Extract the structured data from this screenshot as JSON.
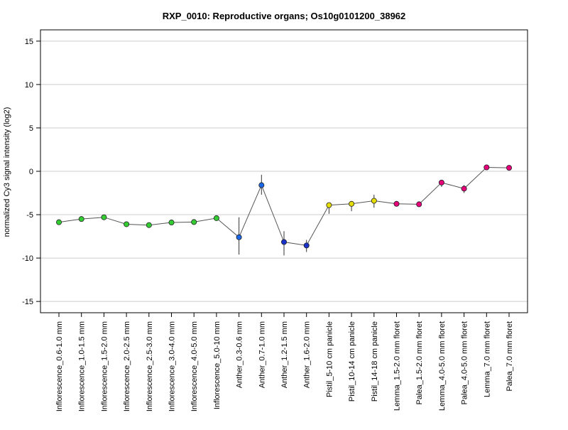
{
  "chart_data": {
    "type": "line",
    "title": "RXP_0010: Reproductive organs; Os10g0101200_38962",
    "xlabel": "",
    "ylabel": "normalized Cy3 signal intensity (log2)",
    "ylim": [
      -16.3,
      16.3
    ],
    "yticks": [
      -15,
      -10,
      -5,
      0,
      5,
      10,
      15
    ],
    "grid": true,
    "categories": [
      "Inflorescence_0.6-1.0 mm",
      "Inflorescence_1.0-1.5 mm",
      "Inflorescence_1.5-2.0 mm",
      "Inflorescence_2.0-2.5 mm",
      "Inflorescence_2.5-3.0 mm",
      "Inflorescence_3.0-4.0 mm",
      "Inflorescence_4.0-5.0 mm",
      "Inflorescence_5.0-10 mm",
      "Anther_0.3-0.6 mm",
      "Anther_0.7-1.0 mm",
      "Anther_1.2-1.5 mm",
      "Anther_1.6-2.0 mm",
      "Pistil_5-10 cm panicle",
      "Pistil_10-14 cm panicle",
      "Pistil_14-18 cm panicle",
      "Lemma_1.5-2.0 mm floret",
      "Palea_1.5-2.0 mm floret",
      "Lemma_4.0-5.0 mm floret",
      "Palea_4.0-5.0 mm floret",
      "Lemma_7.0 mm floret",
      "Palea_7.0 mm floret"
    ],
    "values": [
      -5.87,
      -5.5,
      -5.3,
      -6.1,
      -6.2,
      -5.9,
      -5.85,
      -5.4,
      -7.6,
      -1.6,
      -8.15,
      -8.55,
      -3.9,
      -3.75,
      -3.4,
      -3.75,
      -3.8,
      -1.3,
      -2.0,
      0.45,
      0.4
    ],
    "err_low": [
      -6.0,
      -5.7,
      -5.45,
      -6.2,
      -6.3,
      -6.0,
      -5.95,
      -5.6,
      -9.6,
      -2.7,
      -9.7,
      -9.3,
      -4.9,
      -4.6,
      -4.2,
      -4.0,
      -3.95,
      -1.8,
      -2.5,
      0.3,
      0.2
    ],
    "err_high": [
      -5.75,
      -5.35,
      -5.15,
      -6.0,
      -6.1,
      -5.8,
      -5.75,
      -5.2,
      -5.3,
      -0.4,
      -6.9,
      -7.9,
      -3.6,
      -3.5,
      -2.7,
      -3.55,
      -3.65,
      -1.0,
      -1.6,
      0.6,
      0.55
    ],
    "colors": [
      "#33cc33",
      "#33cc33",
      "#33cc33",
      "#33cc33",
      "#33cc33",
      "#33cc33",
      "#33cc33",
      "#33cc33",
      "#1a66e6",
      "#1a66e6",
      "#1a33cc",
      "#1a33cc",
      "#e6dd00",
      "#e6dd00",
      "#e6dd00",
      "#e6007a",
      "#e6007a",
      "#e6007a",
      "#e6007a",
      "#e6007a",
      "#e6007a"
    ]
  }
}
